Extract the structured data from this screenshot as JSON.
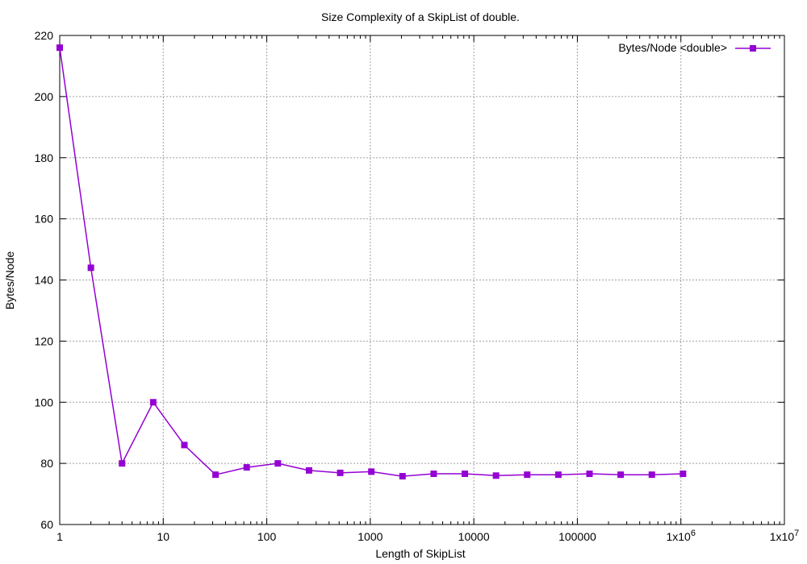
{
  "chart_data": {
    "type": "line",
    "title": "Size Complexity of a SkipList of double.",
    "xlabel": "Length of SkipList",
    "ylabel": "Bytes/Node",
    "xscale": "log",
    "xlim": [
      1,
      10000000
    ],
    "ylim": [
      60,
      220
    ],
    "grid": true,
    "legend_position": "top-right",
    "x_ticks": [
      {
        "value": 1,
        "label": "1"
      },
      {
        "value": 10,
        "label": "10"
      },
      {
        "value": 100,
        "label": "100"
      },
      {
        "value": 1000,
        "label": "1000"
      },
      {
        "value": 10000,
        "label": "10000"
      },
      {
        "value": 100000,
        "label": "100000"
      },
      {
        "value": 1000000,
        "label": "1x10",
        "sup": "6"
      },
      {
        "value": 10000000,
        "label": "1x10",
        "sup": "7"
      }
    ],
    "y_ticks": [
      60,
      80,
      100,
      120,
      140,
      160,
      180,
      200,
      220
    ],
    "series": [
      {
        "name": "Bytes/Node <double>",
        "color": "#9400d3",
        "x": [
          1,
          2,
          4,
          8,
          16,
          32,
          64,
          128,
          256,
          512,
          1024,
          2048,
          4096,
          8192,
          16384,
          32768,
          65536,
          131072,
          262144,
          524288,
          1048576
        ],
        "y": [
          216,
          144,
          80,
          100,
          86,
          76.3,
          78.7,
          80,
          77.7,
          76.9,
          77.3,
          75.8,
          76.6,
          76.6,
          76,
          76.3,
          76.3,
          76.6,
          76.3,
          76.3,
          76.6
        ]
      }
    ]
  }
}
